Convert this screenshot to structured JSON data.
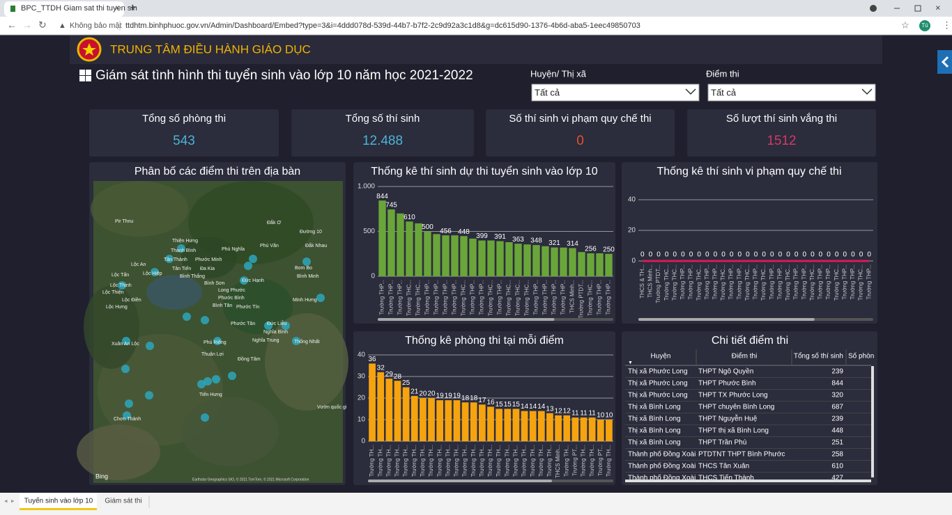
{
  "browser": {
    "tab_title": "BPC_TTDH Giam sat thi tuyen sin",
    "security": "Không bảo mật",
    "url": "ttdhtm.binhphuoc.gov.vn/Admin/Dashboard/Embed?type=3&i=4ddd078d-539d-44b7-b7f2-2c9d92a3c1d8&g=dc615d90-1376-4b6d-aba5-1eec49850703",
    "profile": "Tú"
  },
  "header": {
    "org": "TRUNG TÂM ĐIỀU HÀNH GIÁO DỤC",
    "title": "Giám sát tình hình thi tuyển sinh vào lớp 10 năm học 2021-2022"
  },
  "filters": [
    {
      "label": "Huyện/ Thị xã",
      "value": "Tất cả"
    },
    {
      "label": "Điểm thi",
      "value": "Tất cả"
    }
  ],
  "kpis": [
    {
      "label": "Tổng số phòng thi",
      "value": 543,
      "color": "#4cb4d6"
    },
    {
      "label": "Tổng số thí sinh",
      "value": "12.488",
      "color": "#4cb4d6"
    },
    {
      "label": "Số thí sinh vi phạm quy chế thi",
      "value": 0,
      "color": "#e5502b"
    },
    {
      "label": "Số lượt thí sinh vắng thi",
      "value": 1512,
      "color": "#d13a68"
    }
  ],
  "map": {
    "title": "Phân bố các điểm thi trên địa bàn",
    "labels": [
      "Pir Thnu",
      "Đắk Ơ",
      "Đường 10",
      "Thiện Hưng",
      "Thanh Bình",
      "Phú Nghĩa",
      "Phú Văn",
      "Đắk Nhau",
      "Lộc An",
      "Tân Thành",
      "Phước Minh",
      "Lộc Hiệp",
      "Tân Tiến",
      "Đa Kia",
      "Bom Bo",
      "Lộc Tấn",
      "Bình Thắng",
      "Bình Minh",
      "Lộc Thịnh",
      "Bình Sơn",
      "Đức Hạnh",
      "Lộc Thiện",
      "Long Phước",
      "Lộc Điền",
      "Phước Bình",
      "Minh Hưng",
      "Lộc Hưng",
      "Bình Tân",
      "Phước Tín",
      "Phước Tân",
      "Đức Liễu",
      "Nghĩa Bình",
      "Xuân An Lộc",
      "Nghĩa Trung",
      "Thống Nhất",
      "Phú Riềng",
      "Thuận Lợi",
      "Đồng Tâm",
      "Tiến Hưng",
      "Vườn quốc gi",
      "Chơn Thành"
    ],
    "provider": "Bing",
    "attribution": "Earthstar Geographics SIO, © 2021 TomTom, © 2021 Microsoft Corporation"
  },
  "chart_data": [
    {
      "type": "bar",
      "title": "Thống kê thí sinh dự thi tuyển sinh vào lớp 10",
      "categories": [
        "Trường THP...",
        "Trường THP...",
        "Trường THP...",
        "Trường THC...",
        "Trường THC...",
        "Trường THP...",
        "Trường THP...",
        "Trường THP...",
        "Trường THP...",
        "Trường THC...",
        "Trường THP...",
        "Trường THP...",
        "Trường THC...",
        "Trường THP...",
        "Trường THC...",
        "Trường THC...",
        "Trường THC...",
        "Trường THP...",
        "Trường THP...",
        "Trường THP...",
        "Trường THP...",
        "THCS Minh...",
        "Trường PTDT...",
        "Trường THC...",
        "Trường THP...",
        "Trường THP..."
      ],
      "values": [
        844,
        745,
        700,
        610,
        590,
        500,
        470,
        456,
        456,
        448,
        420,
        399,
        399,
        391,
        380,
        363,
        355,
        348,
        335,
        321,
        320,
        314,
        270,
        256,
        256,
        250
      ],
      "color": "#6aa53a",
      "ylim": [
        0,
        1000
      ],
      "yticks": [
        0,
        500,
        {
          "value": 1000,
          "label": "1.000"
        }
      ],
      "grid": true
    },
    {
      "type": "line",
      "title": "Thống kê thí sinh vi phạm quy chế thi",
      "categories": [
        "THCS & TH...",
        "THCS Minh...",
        "Trường PTDT...",
        "Trường THC...",
        "Trường THC...",
        "Trường THP...",
        "Trường THP...",
        "Trường THC...",
        "Trường THP...",
        "Trường THP...",
        "Trường THC...",
        "Trường THP...",
        "Trường THP...",
        "Trường THC...",
        "Trường THP...",
        "Trường THC...",
        "Trường THP...",
        "Trường THP...",
        "Trường THC...",
        "Trường THP...",
        "Trường THP...",
        "Trường THC...",
        "Trường THP...",
        "Trường THP...",
        "Trường THC...",
        "Trường THP...",
        "Trường THP...",
        "Trường THC...",
        "Trường THP..."
      ],
      "values": [
        0,
        0,
        0,
        0,
        0,
        0,
        0,
        0,
        0,
        0,
        0,
        0,
        0,
        0,
        0,
        0,
        0,
        0,
        0,
        0,
        0,
        0,
        0,
        0,
        0,
        0,
        0,
        0,
        0
      ],
      "color": "#d81b55",
      "ylim": [
        0,
        50
      ],
      "yticks": [
        0,
        20,
        40
      ],
      "grid": true
    },
    {
      "type": "bar",
      "title": "Thống kê phòng thi tại mỗi điểm",
      "categories": [
        "Trường TH...",
        "Trường TH...",
        "Trường TH...",
        "Trường TH...",
        "Trường TH...",
        "Trường TH...",
        "Trường TH...",
        "Trường TH...",
        "Trường TH...",
        "Trường TH...",
        "Trường TH...",
        "Trường TH...",
        "Trường TH...",
        "Trường TH...",
        "Trường TH...",
        "Trường TH...",
        "Trường TH...",
        "Trường TH...",
        "Trường TH...",
        "Trường TH...",
        "Trường TH...",
        "Trường TH...",
        "THCS Minh...",
        "Trường TH...",
        "Trường PT...",
        "Trường TH...",
        "Trường TH...",
        "Trường PT...",
        "Trường TH..."
      ],
      "values": [
        36,
        32,
        29,
        28,
        25,
        21,
        20,
        20,
        19,
        19,
        19,
        18,
        18,
        17,
        16,
        15,
        15,
        15,
        14,
        14,
        14,
        13,
        12,
        12,
        11,
        11,
        11,
        10,
        10
      ],
      "color": "#f5a30f",
      "ylim": [
        0,
        40
      ],
      "yticks": [
        0,
        10,
        20,
        30,
        40
      ],
      "grid": true,
      "data_labels": true
    }
  ],
  "table": {
    "title": "Chi tiết điểm thi",
    "columns": [
      "Huyện",
      "Điểm thi",
      "Tổng số thí sinh",
      "Số phòn"
    ],
    "rows": [
      [
        "Thị xã Phước Long",
        "THPT Ngô Quyền",
        239
      ],
      [
        "Thị xã Phước Long",
        "THPT Phước Bình",
        844
      ],
      [
        "Thị xã Phước Long",
        "THPT TX Phước Long",
        320
      ],
      [
        "Thị xã Bình Long",
        "THPT chuyên Bình Long",
        687
      ],
      [
        "Thị xã Bình Long",
        "THPT Nguyễn Huệ",
        239
      ],
      [
        "Thị xã Bình Long",
        "THPT thị xã Bình Long",
        448
      ],
      [
        "Thị xã Bình Long",
        "THPT Trần Phú",
        251
      ],
      [
        "Thành phố Đồng Xoài",
        "PTDTNT THPT Bình Phước",
        258
      ],
      [
        "Thành phố Đồng Xoài",
        "THCS Tân Xuân",
        610
      ],
      [
        "Thành phố Đồng Xoài",
        "THCS Tiến Thành",
        427
      ]
    ]
  },
  "tabs": [
    "Tuyến sinh vào lớp 10",
    "Giám sát thi"
  ]
}
